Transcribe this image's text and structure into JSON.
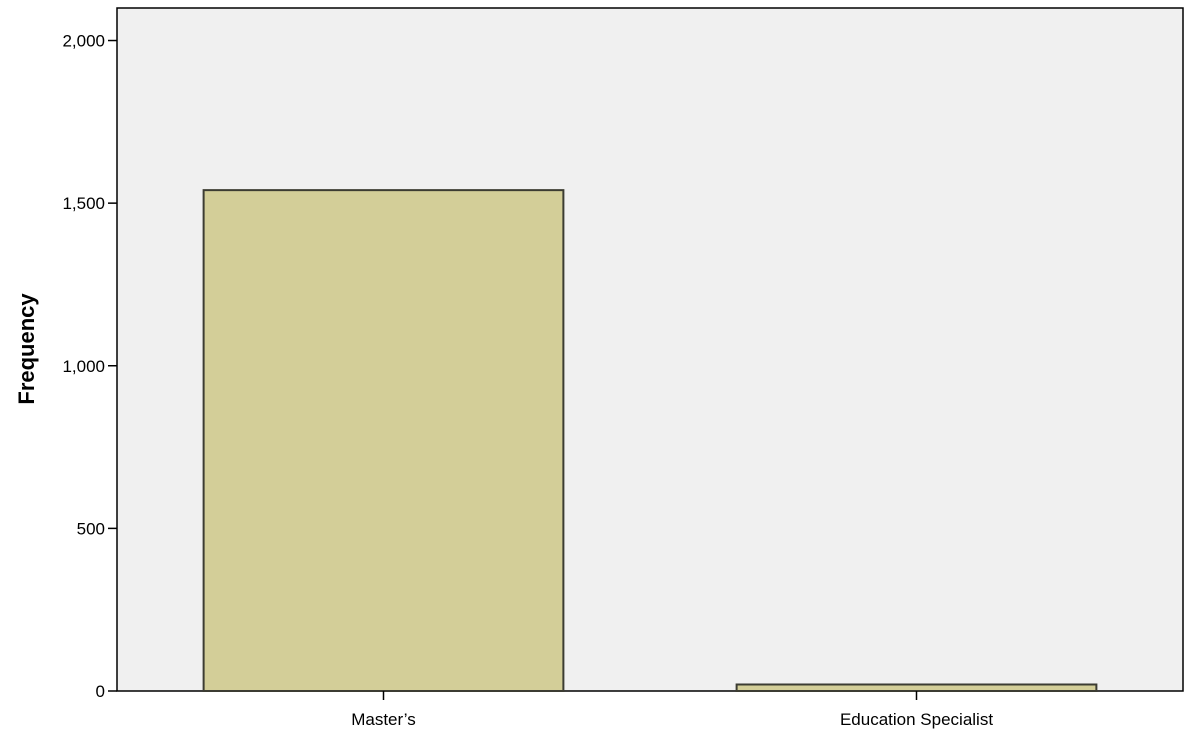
{
  "chart_data": {
    "type": "bar",
    "categories": [
      "Master’s",
      "Education Specialist"
    ],
    "values": [
      1540,
      20
    ],
    "title": "",
    "xlabel": "",
    "ylabel": "Frequency",
    "ylim": [
      0,
      2100
    ],
    "yticks": [
      0,
      500,
      1000,
      1500,
      2000
    ],
    "ytick_labels": [
      "0",
      "500",
      "1,000",
      "1,500",
      "2,000"
    ],
    "grid": false,
    "colors": {
      "plot_background": "#f0f0f0",
      "bar_fill": "#d3ce98",
      "bar_stroke": "#3c3c32",
      "axis": "#000000"
    }
  }
}
